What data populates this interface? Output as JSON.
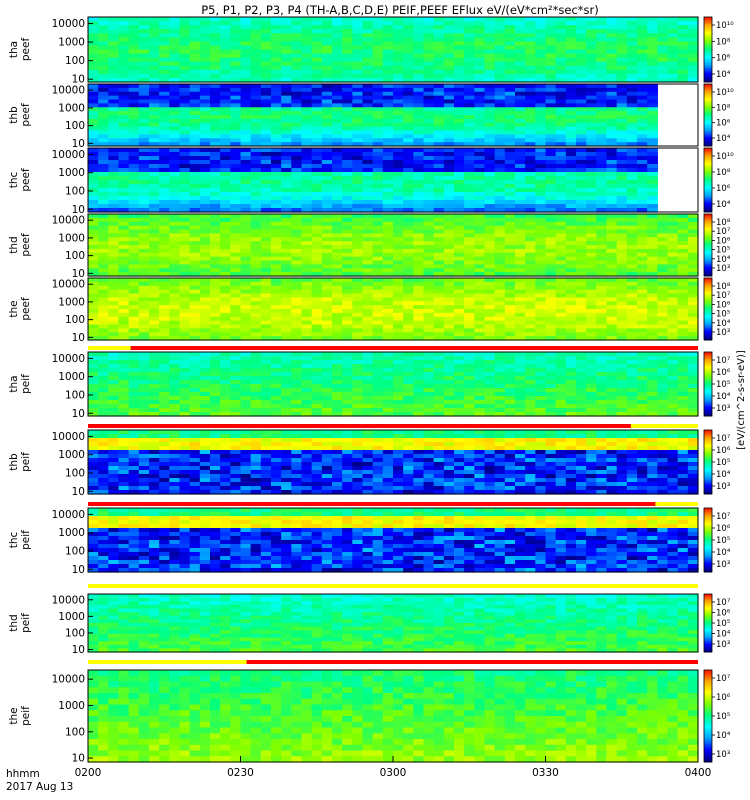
{
  "figure": {
    "title": "P5, P1, P2, P3, P4 (TH-A,B,C,D,E) PEIF,PEEF EFlux eV/(eV*cm²*sec*sr)",
    "colorbar_label": "[eV/(cm^2-s-sr-eV)]"
  },
  "time_axis": {
    "ticks": [
      "0200",
      "0230",
      "0300",
      "0330",
      "0400"
    ],
    "label": "hhmm",
    "date": "2017 Aug 13"
  },
  "colors": {
    "colormap": [
      "#000080",
      "#0000ff",
      "#00a0ff",
      "#00ffff",
      "#00ff80",
      "#80ff00",
      "#ffff00",
      "#ffa000",
      "#ff0000"
    ],
    "flag_red": "#ff0000",
    "flag_yellow": "#ffff00"
  },
  "chart_data": [
    {
      "type": "heatmap",
      "probe": "tha",
      "species": "peef",
      "ylabel": "tha peef",
      "yscale": "log",
      "y_ticks": [
        "10000",
        "1000",
        "100",
        "10"
      ],
      "cb_ticks": [
        "10¹⁰",
        "10⁸",
        "10⁶",
        "10⁴"
      ],
      "cb_range_log": [
        3,
        10.5
      ],
      "background_level": 0.42
    },
    {
      "type": "heatmap",
      "probe": "thb",
      "species": "peef",
      "ylabel": "thb peef",
      "yscale": "log",
      "y_ticks": [
        "10000",
        "1000",
        "100",
        "10"
      ],
      "cb_ticks": [
        "10¹⁰",
        "10⁸",
        "10⁶",
        "10⁴"
      ],
      "cb_range_log": [
        3,
        10.5
      ],
      "data_end": "0352",
      "background_level": 0.18
    },
    {
      "type": "heatmap",
      "probe": "thc",
      "species": "peef",
      "ylabel": "thc peef",
      "yscale": "log",
      "y_ticks": [
        "10000",
        "1000",
        "100",
        "10"
      ],
      "cb_ticks": [
        "10¹⁰",
        "10⁸",
        "10⁶",
        "10⁴"
      ],
      "cb_range_log": [
        3,
        10.5
      ],
      "data_end": "0352",
      "background_level": 0.15
    },
    {
      "type": "heatmap",
      "probe": "thd",
      "species": "peef",
      "ylabel": "thd peef",
      "yscale": "log",
      "y_ticks": [
        "10000",
        "1000",
        "100",
        "10"
      ],
      "cb_ticks": [
        "10⁸",
        "10⁷",
        "10⁶",
        "10⁵",
        "10⁴",
        "10³"
      ],
      "cb_range_log": [
        2.5,
        8.5
      ],
      "background_level": 0.55
    },
    {
      "type": "heatmap",
      "probe": "the",
      "species": "peef",
      "ylabel": "the peef",
      "yscale": "log",
      "y_ticks": [
        "10000",
        "1000",
        "100",
        "10"
      ],
      "cb_ticks": [
        "10⁸",
        "10⁷",
        "10⁶",
        "10⁵",
        "10⁴",
        "10³"
      ],
      "cb_range_log": [
        2.5,
        8.5
      ],
      "background_level": 0.6
    },
    {
      "type": "heatmap",
      "probe": "tha",
      "species": "peif",
      "ylabel": "tha peif",
      "yscale": "log",
      "y_ticks": [
        "10000",
        "1000",
        "100",
        "10"
      ],
      "cb_ticks": [
        "10⁷",
        "10⁶",
        "10⁵",
        "10⁴",
        "10³"
      ],
      "cb_range_log": [
        2.5,
        7.5
      ],
      "background_level": 0.52
    },
    {
      "type": "heatmap",
      "probe": "thb",
      "species": "peif",
      "ylabel": "thb peif",
      "yscale": "log",
      "y_ticks": [
        "10000",
        "1000",
        "100",
        "10"
      ],
      "cb_ticks": [
        "10⁷",
        "10⁶",
        "10⁵",
        "10⁴",
        "10³"
      ],
      "cb_range_log": [
        2.5,
        7.5
      ],
      "background_level": 0.12
    },
    {
      "type": "heatmap",
      "probe": "thc",
      "species": "peif",
      "ylabel": "thc peif",
      "yscale": "log",
      "y_ticks": [
        "10000",
        "1000",
        "100",
        "10"
      ],
      "cb_ticks": [
        "10⁷",
        "10⁶",
        "10⁵",
        "10⁴",
        "10³"
      ],
      "cb_range_log": [
        2.5,
        7.5
      ],
      "background_level": 0.12
    },
    {
      "type": "heatmap",
      "probe": "thd",
      "species": "peif",
      "ylabel": "thd peif",
      "yscale": "log",
      "y_ticks": [
        "10000",
        "1000",
        "100",
        "10"
      ],
      "cb_ticks": [
        "10⁷",
        "10⁶",
        "10⁵",
        "10⁴",
        "10³"
      ],
      "cb_range_log": [
        2.5,
        7.5
      ],
      "background_level": 0.5
    },
    {
      "type": "heatmap",
      "probe": "the",
      "species": "peif",
      "ylabel": "the peif",
      "yscale": "log",
      "y_ticks": [
        "10000",
        "1000",
        "100",
        "10"
      ],
      "cb_ticks": [
        "10⁷",
        "10⁶",
        "10⁵",
        "10⁴",
        "10³"
      ],
      "cb_range_log": [
        2.5,
        7.5
      ],
      "background_level": 0.58
    }
  ]
}
